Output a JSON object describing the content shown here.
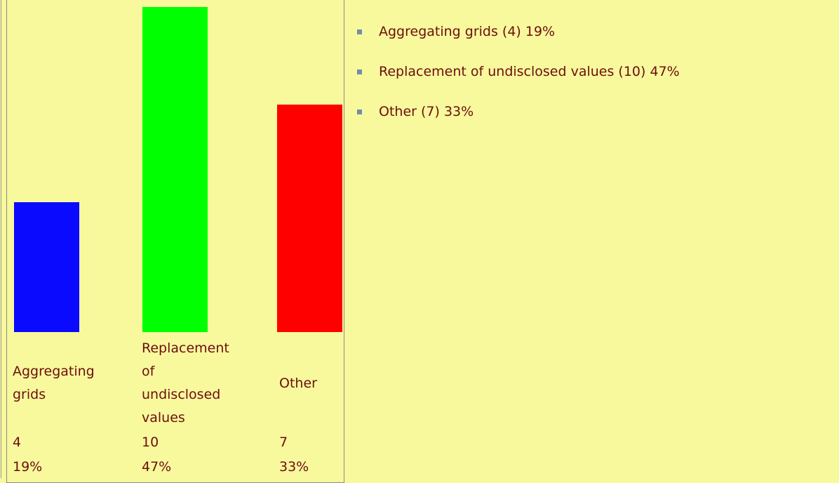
{
  "chart_data": {
    "type": "bar",
    "categories": [
      "Aggregating grids",
      "Replacement of undisclosed values",
      "Other"
    ],
    "values": [
      4,
      10,
      7
    ],
    "percent_labels": [
      "19%",
      "47%",
      "33%"
    ],
    "colors": [
      "#0a0aff",
      "#00ff00",
      "#ff0000"
    ],
    "legend": [
      "Aggregating grids (4) 19%",
      "Replacement of undisclosed values (10) 47%",
      "Other (7) 33%"
    ]
  }
}
